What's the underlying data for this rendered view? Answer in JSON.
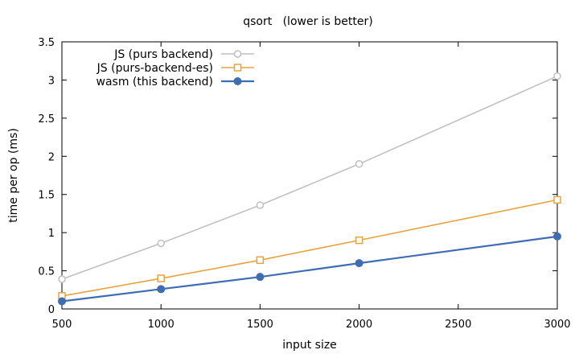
{
  "chart_data": {
    "type": "line",
    "title": "qsort   (lower is better)",
    "xlabel": "input size",
    "ylabel": "time per op (ms)",
    "xlim": [
      500,
      3000
    ],
    "ylim": [
      0,
      3.5
    ],
    "xticks": [
      500,
      1000,
      1500,
      2000,
      2500,
      3000
    ],
    "yticks": [
      0,
      0.5,
      1,
      1.5,
      2,
      2.5,
      3,
      3.5
    ],
    "xtick_labels": [
      "500",
      "1000",
      "1500",
      "2000",
      "2500",
      "3000"
    ],
    "ytick_labels": [
      "0",
      "0.5",
      "1",
      "1.5",
      "2",
      "2.5",
      "3",
      "3.5"
    ],
    "grid": false,
    "legend_position": "top-left",
    "series": [
      {
        "name": "JS (purs backend)",
        "color": "#c0c0c0",
        "marker": "open-circle",
        "x": [
          500,
          1000,
          1500,
          2000,
          3000
        ],
        "y": [
          0.39,
          0.86,
          1.36,
          1.9,
          3.05
        ]
      },
      {
        "name": "JS (purs-backend-es)",
        "color": "#e8a33c",
        "marker": "open-square",
        "x": [
          500,
          1000,
          1500,
          2000,
          3000
        ],
        "y": [
          0.17,
          0.4,
          0.64,
          0.9,
          1.43
        ]
      },
      {
        "name": "wasm (this backend)",
        "color": "#3f6db3",
        "marker": "filled-circle",
        "x": [
          500,
          1000,
          1500,
          2000,
          3000
        ],
        "y": [
          0.1,
          0.26,
          0.42,
          0.6,
          0.95
        ]
      }
    ]
  }
}
